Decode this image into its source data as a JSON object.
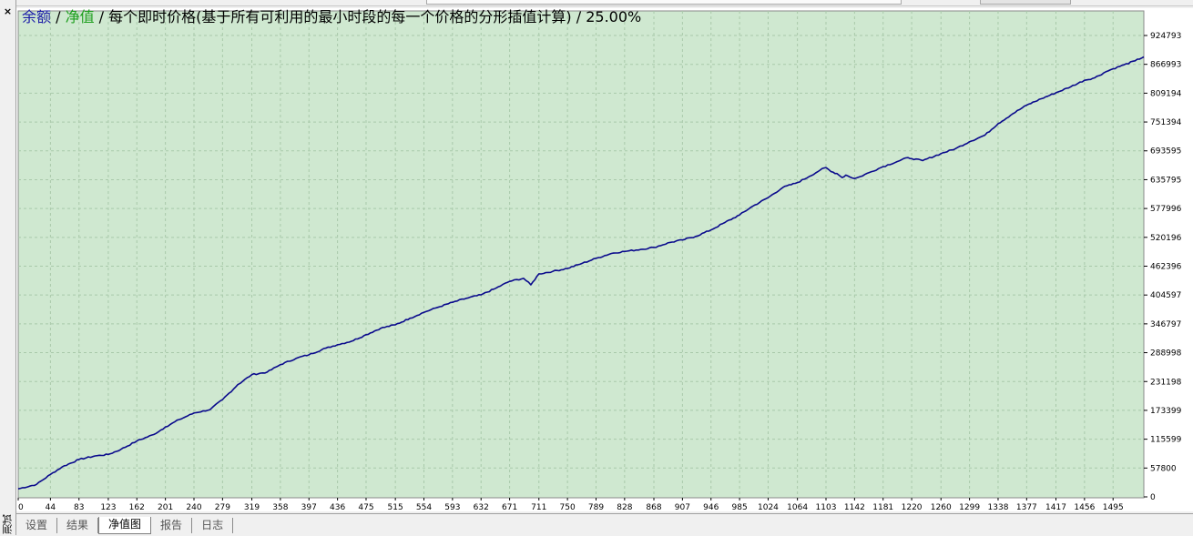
{
  "sidebar": {
    "close_label": "×",
    "vertical_label": "测试"
  },
  "tabs": [
    {
      "label": "设置",
      "active": false
    },
    {
      "label": "结果",
      "active": false
    },
    {
      "label": "净值图",
      "active": true
    },
    {
      "label": "报告",
      "active": false
    },
    {
      "label": "日志",
      "active": false
    }
  ],
  "colors": {
    "plot_bg": "#cfe8d0",
    "grid": "#a9c9aa",
    "balance_line": "#0a0a8c",
    "balance_label": "#1a1aa8",
    "equity_label": "#1e9e1e"
  },
  "chart_data": {
    "type": "line",
    "legend": {
      "balance": "余额",
      "sep1": " / ",
      "equity": "净值",
      "sep2": " / 每个即时价格(基于所有可利用的最小时段的每一个价格的分形插值计算) / 25.00%"
    },
    "x_ticks": [
      "0",
      "44",
      "83",
      "123",
      "162",
      "201",
      "240",
      "279",
      "319",
      "358",
      "397",
      "436",
      "475",
      "515",
      "554",
      "593",
      "632",
      "671",
      "711",
      "750",
      "789",
      "828",
      "868",
      "907",
      "946",
      "985",
      "1024",
      "1064",
      "1103",
      "1142",
      "1181",
      "1220",
      "1260",
      "1299",
      "1338",
      "1377",
      "1417",
      "1456",
      "1495"
    ],
    "y_ticks": [
      "0",
      "57800",
      "115599",
      "173399",
      "231198",
      "288998",
      "346797",
      "404597",
      "462396",
      "520196",
      "577996",
      "635795",
      "693595",
      "751394",
      "809194",
      "866993",
      "924793"
    ],
    "xlim": [
      0,
      1537
    ],
    "ylim": [
      0,
      924793
    ],
    "series": [
      {
        "x": [
          0,
          25,
          44,
          60,
          83,
          105,
          123,
          140,
          162,
          185,
          201,
          220,
          240,
          262,
          279,
          300,
          319,
          340,
          358,
          380,
          397,
          420,
          436,
          455,
          475,
          495,
          515,
          535,
          554,
          573,
          593,
          612,
          632,
          652,
          671,
          690,
          700,
          711,
          730,
          750,
          770,
          789,
          810,
          828,
          850,
          868,
          890,
          907,
          925,
          946,
          965,
          985,
          1000,
          1024,
          1044,
          1064,
          1080,
          1095,
          1103,
          1110,
          1118,
          1125,
          1130,
          1142,
          1150,
          1162,
          1181,
          1200,
          1215,
          1220,
          1235,
          1260,
          1280,
          1299,
          1320,
          1338,
          1358,
          1377,
          1397,
          1417,
          1437,
          1456,
          1470,
          1485,
          1495,
          1510,
          1525,
          1537
        ],
        "values": [
          16000,
          25000,
          45000,
          60000,
          75000,
          82000,
          85000,
          95000,
          112000,
          125000,
          140000,
          155000,
          168000,
          175000,
          195000,
          225000,
          245000,
          250000,
          265000,
          278000,
          285000,
          298000,
          305000,
          312000,
          325000,
          338000,
          345000,
          358000,
          370000,
          380000,
          390000,
          398000,
          405000,
          418000,
          432000,
          438000,
          425000,
          447000,
          452000,
          458000,
          468000,
          478000,
          488000,
          492000,
          496000,
          500000,
          510000,
          515000,
          522000,
          535000,
          550000,
          565000,
          580000,
          600000,
          620000,
          630000,
          642000,
          655000,
          660000,
          652000,
          648000,
          640000,
          645000,
          638000,
          642000,
          650000,
          662000,
          672000,
          680000,
          678000,
          674000,
          688000,
          698000,
          712000,
          725000,
          748000,
          768000,
          785000,
          798000,
          810000,
          822000,
          835000,
          840000,
          852000,
          858000,
          866000,
          874000,
          882000
        ]
      }
    ]
  }
}
